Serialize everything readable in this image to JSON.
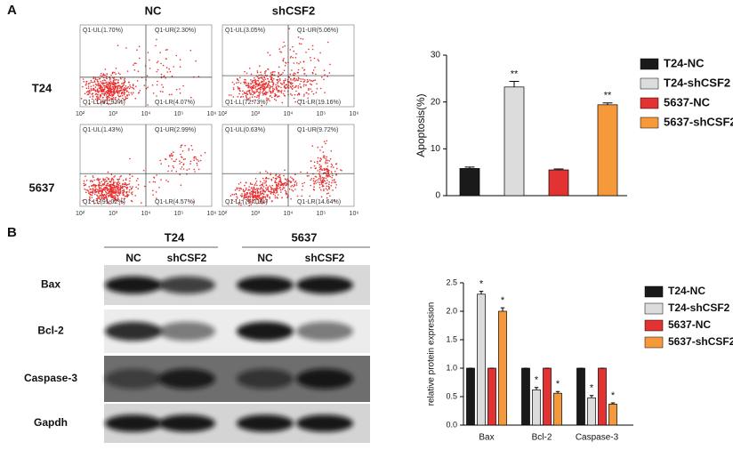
{
  "panels": [
    "A",
    "B"
  ],
  "flow": {
    "columns": [
      "NC",
      "shCSF2"
    ],
    "rows": [
      "T24",
      "5637"
    ],
    "x_tick_labels": [
      "10²",
      "10³",
      "10⁴",
      "10⁵",
      "10⁶"
    ],
    "plots": [
      {
        "quadrants": [
          "Q1-UL(1.70%)",
          "Q1-UR(2.30%)",
          "Q1-LL(91.93%)",
          "Q1-LR(4.07%)"
        ]
      },
      {
        "quadrants": [
          "Q1-UL(3.05%)",
          "Q1-UR(5.06%)",
          "Q1-LL(72.73%)",
          "Q1-LR(19.16%)"
        ]
      },
      {
        "quadrants": [
          "Q1-UL(1.43%)",
          "Q1-UR(2.99%)",
          "Q1-LL(91.02%)",
          "Q1-LR(4.57%)"
        ]
      },
      {
        "quadrants": [
          "Q1-UL(0.63%)",
          "Q1-UR(9.72%)",
          "Q1-LL(75.01%)",
          "Q1-LR(14.64%)"
        ]
      }
    ]
  },
  "blot": {
    "groups": [
      "T24",
      "5637"
    ],
    "lanes": [
      "NC",
      "shCSF2",
      "NC",
      "shCSF2"
    ],
    "rows": [
      "Bax",
      "Bcl-2",
      "Caspase-3",
      "Gapdh"
    ]
  },
  "chart_data": [
    {
      "type": "bar",
      "y_label": "Apoptosis(%)",
      "categories": [
        null
      ],
      "ylim": [
        0,
        30
      ],
      "yticks": [
        0,
        10,
        20,
        30
      ],
      "series": [
        {
          "name": "T24-NC",
          "color": "#1a1a1a",
          "values": [
            5.8
          ],
          "errors": [
            0.3
          ]
        },
        {
          "name": "T24-shCSF2",
          "color": "#dcdcdc",
          "values": [
            23.2
          ],
          "errors": [
            1.2
          ],
          "significance": "**"
        },
        {
          "name": "5637-NC",
          "color": "#e23232",
          "values": [
            5.5
          ],
          "errors": [
            0.2
          ]
        },
        {
          "name": "5637-shCSF2",
          "color": "#f5993a",
          "values": [
            19.4
          ],
          "errors": [
            0.4
          ],
          "significance": "**"
        }
      ]
    },
    {
      "type": "bar",
      "y_label": "relative protein expression",
      "categories": [
        "Bax",
        "Bcl-2",
        "Caspase-3"
      ],
      "ylim": [
        0,
        2.5
      ],
      "yticks": [
        {
          "value": 0,
          "label": "0.0"
        },
        0.5,
        {
          "value": 1,
          "label": "1.0"
        },
        1.5,
        {
          "value": 2,
          "label": "2.0"
        },
        2.5
      ],
      "series": [
        {
          "name": "T24-NC",
          "color": "#1a1a1a",
          "values": [
            1,
            1,
            1
          ],
          "errors": [
            0,
            0,
            0
          ]
        },
        {
          "name": "T24-shCSF2",
          "color": "#dcdcdc",
          "values": [
            2.3,
            0.62,
            0.48
          ],
          "errors": [
            0.05,
            0.04,
            0.04
          ],
          "significance": "*"
        },
        {
          "name": "5637-NC",
          "color": "#e23232",
          "values": [
            1,
            1,
            1
          ],
          "errors": [
            0,
            0,
            0
          ]
        },
        {
          "name": "5637-shCSF2",
          "color": "#f5993a",
          "values": [
            2.0,
            0.56,
            0.37
          ],
          "errors": [
            0.06,
            0.03,
            0.02
          ],
          "significance": "*"
        }
      ]
    }
  ]
}
